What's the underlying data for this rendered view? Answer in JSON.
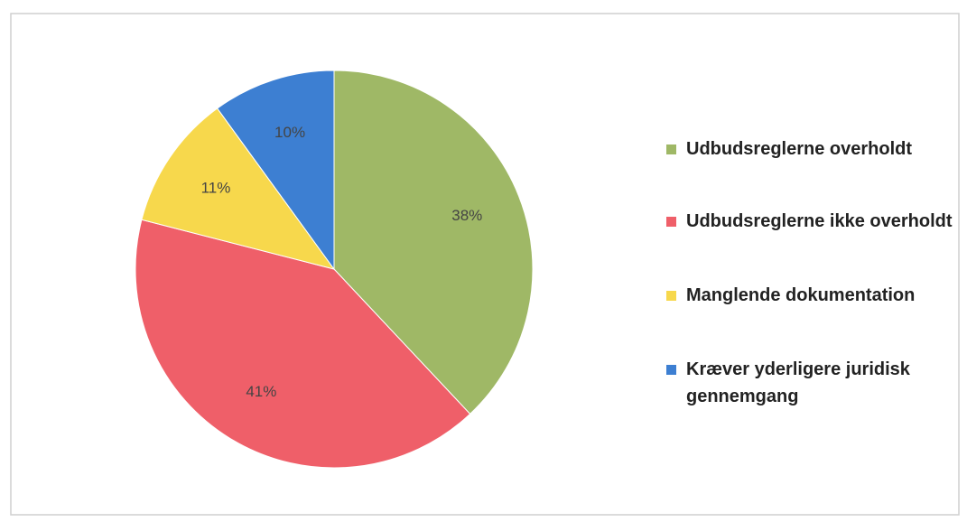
{
  "chart_data": {
    "type": "pie",
    "categories": [
      "Udbudsreglerne overholdt",
      "Udbudsreglerne ikke overholdt",
      "Manglende dokumentation",
      "Kræver yderligere juridisk gennemgang"
    ],
    "values": [
      38,
      41,
      11,
      10
    ],
    "value_labels": [
      "38%",
      "41%",
      "11%",
      "10%"
    ],
    "colors": [
      "#9fb866",
      "#ef5f69",
      "#f7d84c",
      "#3d7fd2"
    ],
    "legend": "right"
  }
}
